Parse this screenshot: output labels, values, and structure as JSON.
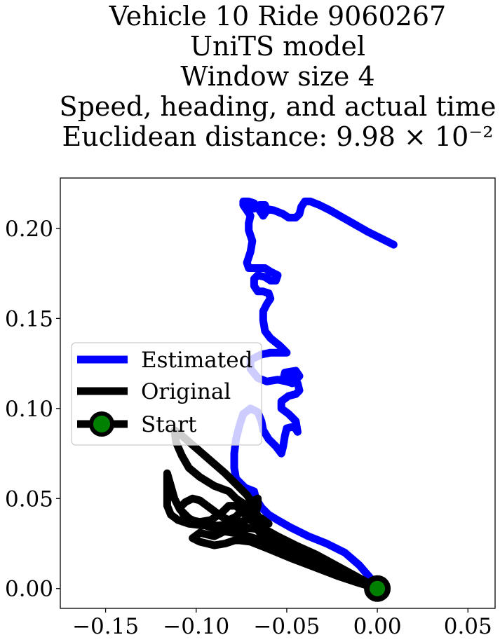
{
  "chart_data": {
    "type": "line",
    "title_lines": [
      "Vehicle 10 Ride 9060267",
      "UniTS model",
      "Window size 4",
      "Speed, heading, and actual time",
      "Euclidean distance: 9.98 × 10⁻²"
    ],
    "xlabel": "",
    "ylabel": "",
    "xlim": [
      -0.175,
      0.065
    ],
    "ylim": [
      -0.011,
      0.228
    ],
    "x_ticks": [
      -0.15,
      -0.1,
      -0.05,
      0.0,
      0.05
    ],
    "x_tick_labels": [
      "−0.15",
      "−0.10",
      "−0.05",
      "0.00",
      "0.05"
    ],
    "y_ticks": [
      0.0,
      0.05,
      0.1,
      0.15,
      0.2
    ],
    "y_tick_labels": [
      "0.00",
      "0.05",
      "0.10",
      "0.15",
      "0.20"
    ],
    "grid": false,
    "legend_position": "center-left",
    "series": [
      {
        "name": "Estimated",
        "color": "#0000ff",
        "points": [
          [
            0.0,
            0.0
          ],
          [
            -0.004,
            0.006
          ],
          [
            -0.01,
            0.013
          ],
          [
            -0.018,
            0.02
          ],
          [
            -0.028,
            0.025
          ],
          [
            -0.038,
            0.029
          ],
          [
            -0.048,
            0.034
          ],
          [
            -0.055,
            0.038
          ],
          [
            -0.06,
            0.041
          ],
          [
            -0.064,
            0.045
          ],
          [
            -0.067,
            0.05
          ],
          [
            -0.068,
            0.054
          ],
          [
            -0.073,
            0.056
          ],
          [
            -0.078,
            0.061
          ],
          [
            -0.079,
            0.067
          ],
          [
            -0.079,
            0.075
          ],
          [
            -0.078,
            0.083
          ],
          [
            -0.076,
            0.091
          ],
          [
            -0.074,
            0.097
          ],
          [
            -0.07,
            0.1
          ],
          [
            -0.066,
            0.098
          ],
          [
            -0.064,
            0.093
          ],
          [
            -0.063,
            0.088
          ],
          [
            -0.06,
            0.083
          ],
          [
            -0.056,
            0.079
          ],
          [
            -0.053,
            0.075
          ],
          [
            -0.052,
            0.079
          ],
          [
            -0.051,
            0.085
          ],
          [
            -0.05,
            0.089
          ],
          [
            -0.046,
            0.09
          ],
          [
            -0.044,
            0.087
          ],
          [
            -0.045,
            0.093
          ],
          [
            -0.049,
            0.097
          ],
          [
            -0.053,
            0.1
          ],
          [
            -0.053,
            0.104
          ],
          [
            -0.049,
            0.107
          ],
          [
            -0.045,
            0.108
          ],
          [
            -0.043,
            0.11
          ],
          [
            -0.044,
            0.114
          ],
          [
            -0.047,
            0.117
          ],
          [
            -0.049,
            0.118
          ],
          [
            -0.052,
            0.116
          ],
          [
            -0.051,
            0.12
          ],
          [
            -0.045,
            0.121
          ],
          [
            -0.043,
            0.118
          ],
          [
            -0.047,
            0.114
          ],
          [
            -0.05,
            0.115
          ],
          [
            -0.055,
            0.116
          ],
          [
            -0.061,
            0.115
          ],
          [
            -0.066,
            0.117
          ],
          [
            -0.07,
            0.122
          ],
          [
            -0.07,
            0.127
          ],
          [
            -0.064,
            0.13
          ],
          [
            -0.059,
            0.131
          ],
          [
            -0.053,
            0.131
          ],
          [
            -0.05,
            0.131
          ],
          [
            -0.054,
            0.135
          ],
          [
            -0.059,
            0.139
          ],
          [
            -0.062,
            0.143
          ],
          [
            -0.063,
            0.149
          ],
          [
            -0.063,
            0.154
          ],
          [
            -0.061,
            0.158
          ],
          [
            -0.059,
            0.161
          ],
          [
            -0.06,
            0.164
          ],
          [
            -0.063,
            0.165
          ],
          [
            -0.066,
            0.165
          ],
          [
            -0.068,
            0.168
          ],
          [
            -0.068,
            0.172
          ],
          [
            -0.066,
            0.174
          ],
          [
            -0.062,
            0.173
          ],
          [
            -0.059,
            0.171
          ],
          [
            -0.056,
            0.171
          ],
          [
            -0.055,
            0.174
          ],
          [
            -0.059,
            0.176
          ],
          [
            -0.062,
            0.178
          ],
          [
            -0.066,
            0.178
          ],
          [
            -0.071,
            0.178
          ],
          [
            -0.072,
            0.181
          ],
          [
            -0.07,
            0.187
          ],
          [
            -0.069,
            0.193
          ],
          [
            -0.071,
            0.199
          ],
          [
            -0.071,
            0.203
          ],
          [
            -0.07,
            0.207
          ],
          [
            -0.072,
            0.21
          ],
          [
            -0.074,
            0.213
          ],
          [
            -0.074,
            0.215
          ],
          [
            -0.071,
            0.215
          ],
          [
            -0.068,
            0.214
          ],
          [
            -0.071,
            0.211
          ],
          [
            -0.068,
            0.211
          ],
          [
            -0.065,
            0.213
          ],
          [
            -0.062,
            0.213
          ],
          [
            -0.061,
            0.21
          ],
          [
            -0.063,
            0.207
          ],
          [
            -0.065,
            0.21
          ],
          [
            -0.062,
            0.211
          ],
          [
            -0.057,
            0.21
          ],
          [
            -0.052,
            0.208
          ],
          [
            -0.049,
            0.206
          ],
          [
            -0.045,
            0.206
          ],
          [
            -0.043,
            0.208
          ],
          [
            -0.042,
            0.212
          ],
          [
            -0.04,
            0.215
          ],
          [
            -0.037,
            0.215
          ],
          [
            -0.032,
            0.213
          ],
          [
            -0.026,
            0.21
          ],
          [
            -0.019,
            0.206
          ],
          [
            -0.012,
            0.202
          ],
          [
            -0.005,
            0.198
          ],
          [
            0.003,
            0.194
          ],
          [
            0.009,
            0.191
          ]
        ]
      },
      {
        "name": "Original",
        "color": "#000000",
        "points": [
          [
            0.0,
            0.0
          ],
          [
            -0.01,
            0.003
          ],
          [
            -0.022,
            0.007
          ],
          [
            -0.035,
            0.012
          ],
          [
            -0.048,
            0.017
          ],
          [
            -0.06,
            0.022
          ],
          [
            -0.07,
            0.026
          ],
          [
            -0.078,
            0.027
          ],
          [
            -0.084,
            0.025
          ],
          [
            -0.09,
            0.024
          ],
          [
            -0.098,
            0.026
          ],
          [
            -0.102,
            0.028
          ],
          [
            -0.098,
            0.031
          ],
          [
            -0.09,
            0.029
          ],
          [
            -0.082,
            0.033
          ],
          [
            -0.074,
            0.034
          ],
          [
            -0.066,
            0.033
          ],
          [
            -0.06,
            0.036
          ],
          [
            -0.064,
            0.039
          ],
          [
            -0.07,
            0.042
          ],
          [
            -0.072,
            0.046
          ],
          [
            -0.078,
            0.05
          ],
          [
            -0.082,
            0.054
          ],
          [
            -0.09,
            0.057
          ],
          [
            -0.098,
            0.062
          ],
          [
            -0.104,
            0.067
          ],
          [
            -0.108,
            0.074
          ],
          [
            -0.111,
            0.081
          ],
          [
            -0.112,
            0.088
          ],
          [
            -0.108,
            0.085
          ],
          [
            -0.1,
            0.078
          ],
          [
            -0.092,
            0.071
          ],
          [
            -0.084,
            0.064
          ],
          [
            -0.078,
            0.058
          ],
          [
            -0.072,
            0.052
          ],
          [
            -0.068,
            0.046
          ],
          [
            -0.066,
            0.04
          ],
          [
            -0.072,
            0.038
          ],
          [
            -0.08,
            0.036
          ],
          [
            -0.088,
            0.035
          ],
          [
            -0.096,
            0.035
          ],
          [
            -0.104,
            0.036
          ],
          [
            -0.11,
            0.038
          ],
          [
            -0.114,
            0.041
          ],
          [
            -0.116,
            0.046
          ],
          [
            -0.116,
            0.052
          ],
          [
            -0.116,
            0.058
          ],
          [
            -0.116,
            0.064
          ],
          [
            -0.114,
            0.057
          ],
          [
            -0.112,
            0.05
          ],
          [
            -0.109,
            0.044
          ],
          [
            -0.104,
            0.039
          ],
          [
            -0.098,
            0.036
          ],
          [
            -0.092,
            0.034
          ],
          [
            -0.086,
            0.032
          ],
          [
            -0.08,
            0.031
          ],
          [
            -0.074,
            0.03
          ],
          [
            -0.068,
            0.028
          ],
          [
            -0.06,
            0.025
          ],
          [
            -0.05,
            0.021
          ],
          [
            -0.04,
            0.017
          ],
          [
            -0.03,
            0.013
          ],
          [
            -0.02,
            0.009
          ],
          [
            -0.01,
            0.005
          ],
          [
            -0.004,
            0.002
          ],
          [
            -0.012,
            0.006
          ],
          [
            -0.024,
            0.011
          ],
          [
            -0.036,
            0.016
          ],
          [
            -0.048,
            0.021
          ],
          [
            -0.058,
            0.026
          ],
          [
            -0.064,
            0.03
          ],
          [
            -0.068,
            0.035
          ],
          [
            -0.068,
            0.04
          ],
          [
            -0.066,
            0.046
          ],
          [
            -0.066,
            0.05
          ],
          [
            -0.07,
            0.048
          ],
          [
            -0.074,
            0.044
          ],
          [
            -0.078,
            0.04
          ],
          [
            -0.082,
            0.038
          ],
          [
            -0.086,
            0.04
          ],
          [
            -0.09,
            0.043
          ],
          [
            -0.094,
            0.046
          ],
          [
            -0.098,
            0.049
          ],
          [
            -0.102,
            0.05
          ],
          [
            -0.106,
            0.048
          ],
          [
            -0.109,
            0.045
          ],
          [
            -0.107,
            0.041
          ],
          [
            -0.103,
            0.038
          ],
          [
            -0.098,
            0.037
          ],
          [
            -0.092,
            0.038
          ],
          [
            -0.086,
            0.042
          ],
          [
            -0.082,
            0.046
          ],
          [
            -0.078,
            0.046
          ],
          [
            -0.074,
            0.042
          ],
          [
            -0.07,
            0.038
          ],
          [
            -0.064,
            0.034
          ],
          [
            -0.055,
            0.029
          ],
          [
            -0.045,
            0.024
          ],
          [
            -0.034,
            0.019
          ],
          [
            -0.023,
            0.013
          ],
          [
            -0.012,
            0.007
          ],
          [
            -0.003,
            0.002
          ],
          [
            0.0,
            0.0
          ]
        ]
      }
    ],
    "start_point": {
      "name": "Start",
      "x": 0.0,
      "y": 0.0,
      "line_color": "#000000",
      "fill_color": "#008000"
    },
    "legend_entries": [
      {
        "label": "Estimated",
        "color": "#0000ff",
        "marker": false
      },
      {
        "label": "Original",
        "color": "#000000",
        "marker": false
      },
      {
        "label": "Start",
        "color": "#000000",
        "marker": true,
        "marker_fill": "#008000"
      }
    ]
  }
}
